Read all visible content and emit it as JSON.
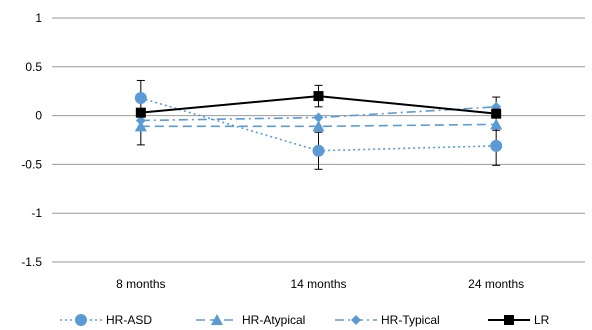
{
  "chart_data": {
    "type": "line",
    "categories": [
      "8 months",
      "14 months",
      "24 months"
    ],
    "ylim": [
      -1.5,
      1
    ],
    "yticks": [
      "1",
      "0.5",
      "0",
      "-0.5",
      "-1",
      "-1.5"
    ],
    "grid": true,
    "legend_position": "bottom",
    "series": [
      {
        "name": "HR-ASD",
        "values": [
          0.18,
          -0.36,
          -0.31
        ],
        "error": [
          null,
          0.19,
          0.2
        ],
        "color": "#5b9bd5",
        "line": "dotted",
        "marker": "circle"
      },
      {
        "name": "HR-Atypical",
        "values": [
          -0.11,
          -0.11,
          -0.09
        ],
        "error": [
          null,
          null,
          null
        ],
        "color": "#5b9bd5",
        "line": "dashed",
        "marker": "triangle"
      },
      {
        "name": "HR-Typical",
        "values": [
          -0.05,
          -0.02,
          0.09
        ],
        "error": [
          null,
          null,
          null
        ],
        "color": "#5b9bd5",
        "line": "dashdot",
        "marker": "diamond"
      },
      {
        "name": "LR",
        "values": [
          0.03,
          0.2,
          0.02
        ],
        "error": [
          0.33,
          0.11,
          0.17
        ],
        "color": "#000000",
        "line": "solid",
        "marker": "square"
      }
    ]
  }
}
